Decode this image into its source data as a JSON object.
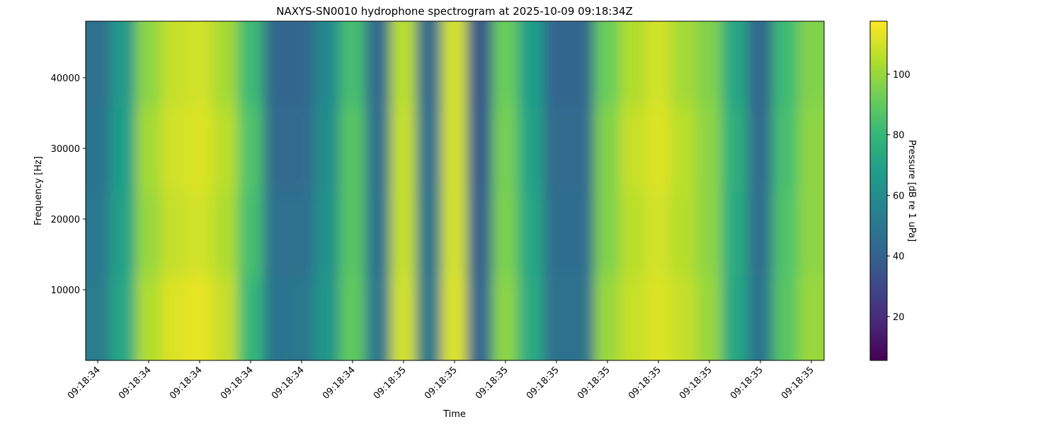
{
  "chart_data": {
    "type": "heatmap",
    "title": "NAXYS-SN0010 hydrophone spectrogram at 2025-10-09 09:18:34Z",
    "xlabel": "Time",
    "ylabel": "Frequency [Hz]",
    "colorbar_label": "Pressure [dB re 1 uPa]",
    "colormap": "viridis",
    "ylim": [
      0,
      48000
    ],
    "yticks": [
      10000,
      20000,
      30000,
      40000
    ],
    "clim": [
      5.5,
      117.5
    ],
    "cticks": [
      20,
      40,
      60,
      80,
      100
    ],
    "xtick_labels": [
      "09:18:34",
      "09:18:34",
      "09:18:34",
      "09:18:34",
      "09:18:34",
      "09:18:34",
      "09:18:35",
      "09:18:35",
      "09:18:35",
      "09:18:35",
      "09:18:35",
      "09:18:35",
      "09:18:35",
      "09:18:35",
      "09:18:35"
    ],
    "z": [
      [
        52,
        72,
        104,
        112,
        114,
        108,
        80,
        48,
        50,
        64,
        90,
        50,
        110,
        50,
        112,
        42,
        98,
        74,
        47,
        47,
        100,
        108,
        112,
        108,
        100,
        72,
        48,
        88,
        100
      ],
      [
        50,
        70,
        100,
        108,
        110,
        104,
        84,
        46,
        46,
        62,
        88,
        48,
        108,
        48,
        110,
        40,
        95,
        72,
        45,
        45,
        96,
        106,
        110,
        105,
        98,
        74,
        46,
        86,
        98
      ],
      [
        48,
        68,
        102,
        110,
        112,
        106,
        86,
        44,
        44,
        60,
        88,
        46,
        108,
        46,
        110,
        38,
        94,
        70,
        44,
        44,
        96,
        108,
        112,
        106,
        98,
        76,
        44,
        84,
        98
      ],
      [
        46,
        66,
        98,
        108,
        110,
        102,
        82,
        42,
        42,
        58,
        84,
        44,
        106,
        44,
        110,
        36,
        92,
        68,
        42,
        42,
        92,
        104,
        110,
        102,
        96,
        72,
        42,
        82,
        96
      ]
    ]
  }
}
